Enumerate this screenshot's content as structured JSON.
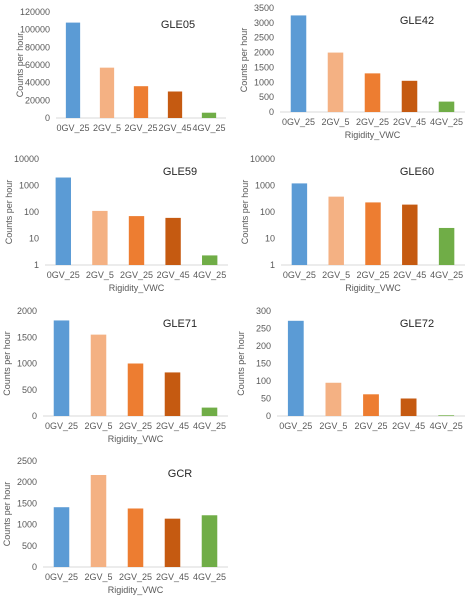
{
  "colors": {
    "0GV_25": "#5b9bd5",
    "2GV_5": "#f4b183",
    "2GV_25": "#ed7d31",
    "2GV_45": "#c55a11",
    "4GV_25": "#70ad47"
  },
  "chart_data": [
    {
      "type": "bar",
      "title": "GLE05",
      "ylabel": "Counts per hour",
      "xlabel": "",
      "scale": "linear",
      "ylim": [
        0,
        120000
      ],
      "yticks": [
        0,
        20000,
        40000,
        60000,
        80000,
        100000,
        120000
      ],
      "ytick_labels": [
        "0",
        "20000",
        "40000",
        "60000",
        "80000",
        "100000",
        "120000"
      ],
      "categories": [
        "0GV_25",
        "2GV_5",
        "2GV_25",
        "2GV_45",
        "4GV_25"
      ],
      "values": [
        108000,
        57000,
        36000,
        30000,
        6000
      ],
      "bar_colors": [
        "#5b9bd5",
        "#f4b183",
        "#ed7d31",
        "#c55a11",
        "#70ad47"
      ]
    },
    {
      "type": "bar",
      "title": "GLE42",
      "ylabel": "Counts per hour",
      "xlabel": "Rigidity_VWC",
      "scale": "linear",
      "ylim": [
        0,
        3500
      ],
      "yticks": [
        0,
        500,
        1000,
        1500,
        2000,
        2500,
        3000,
        3500
      ],
      "ytick_labels": [
        "0",
        "500",
        "1000",
        "1500",
        "2000",
        "2500",
        "3000",
        "3500"
      ],
      "categories": [
        "0GV_25",
        "2GV_5",
        "2GV_25",
        "2GV_45",
        "4GV_25"
      ],
      "values": [
        3250,
        2000,
        1300,
        1050,
        350
      ],
      "bar_colors": [
        "#5b9bd5",
        "#f4b183",
        "#ed7d31",
        "#c55a11",
        "#70ad47"
      ]
    },
    {
      "type": "bar",
      "title": "GLE59",
      "ylabel": "Counts per hour",
      "xlabel": "Rigidity_VWC",
      "scale": "log",
      "ylim": [
        1,
        10000
      ],
      "yticks": [
        1,
        10,
        100,
        1000,
        10000
      ],
      "ytick_labels": [
        "1",
        "10",
        "100",
        "1000",
        "10000"
      ],
      "categories": [
        "0GV_25",
        "2GV_5",
        "2GV_25",
        "2GV_45",
        "4GV_25"
      ],
      "values": [
        2000,
        110,
        70,
        60,
        2.3
      ],
      "bar_colors": [
        "#5b9bd5",
        "#f4b183",
        "#ed7d31",
        "#c55a11",
        "#70ad47"
      ]
    },
    {
      "type": "bar",
      "title": "GLE60",
      "ylabel": "Counts per hour",
      "xlabel": "Rigidity_VWC",
      "scale": "log",
      "ylim": [
        1,
        10000
      ],
      "yticks": [
        1,
        10,
        100,
        1000,
        10000
      ],
      "ytick_labels": [
        "1",
        "10",
        "100",
        "1000",
        "10000"
      ],
      "categories": [
        "0GV_25",
        "2GV_5",
        "2GV_25",
        "2GV_45",
        "4GV_25"
      ],
      "values": [
        1200,
        380,
        230,
        190,
        25
      ],
      "bar_colors": [
        "#5b9bd5",
        "#f4b183",
        "#ed7d31",
        "#c55a11",
        "#70ad47"
      ]
    },
    {
      "type": "bar",
      "title": "GLE71",
      "ylabel": "Counts per hour",
      "xlabel": "Rigidity_VWC",
      "scale": "linear",
      "ylim": [
        0,
        2000
      ],
      "yticks": [
        0,
        500,
        1000,
        1500,
        2000
      ],
      "ytick_labels": [
        "0",
        "500",
        "1000",
        "1500",
        "2000"
      ],
      "categories": [
        "0GV_25",
        "2GV_5",
        "2GV_25",
        "2GV_45",
        "4GV_25"
      ],
      "values": [
        1820,
        1550,
        1000,
        830,
        160
      ],
      "bar_colors": [
        "#5b9bd5",
        "#f4b183",
        "#ed7d31",
        "#c55a11",
        "#70ad47"
      ]
    },
    {
      "type": "bar",
      "title": "GLE72",
      "ylabel": "Counts per hour",
      "xlabel": "",
      "scale": "linear",
      "ylim": [
        0,
        300
      ],
      "yticks": [
        0,
        50,
        100,
        150,
        200,
        250,
        300
      ],
      "ytick_labels": [
        "0",
        "50",
        "100",
        "150",
        "200",
        "250",
        "300"
      ],
      "categories": [
        "0GV_25",
        "2GV_5",
        "2GV_25",
        "2GV_45",
        "4GV_25"
      ],
      "values": [
        272,
        95,
        62,
        50,
        2
      ],
      "bar_colors": [
        "#5b9bd5",
        "#f4b183",
        "#ed7d31",
        "#c55a11",
        "#70ad47"
      ]
    },
    {
      "type": "bar",
      "title": "GCR",
      "ylabel": "Counts per hour",
      "xlabel": "Rigidity_VWC",
      "scale": "linear",
      "ylim": [
        0,
        2500
      ],
      "yticks": [
        0,
        500,
        1000,
        1500,
        2000,
        2500
      ],
      "ytick_labels": [
        "0",
        "500",
        "1000",
        "1500",
        "2000",
        "2500"
      ],
      "categories": [
        "0GV_25",
        "2GV_5",
        "2GV_25",
        "2GV_45",
        "4GV_25"
      ],
      "values": [
        1410,
        2170,
        1380,
        1140,
        1220
      ],
      "bar_colors": [
        "#5b9bd5",
        "#f4b183",
        "#ed7d31",
        "#c55a11",
        "#70ad47"
      ]
    }
  ]
}
